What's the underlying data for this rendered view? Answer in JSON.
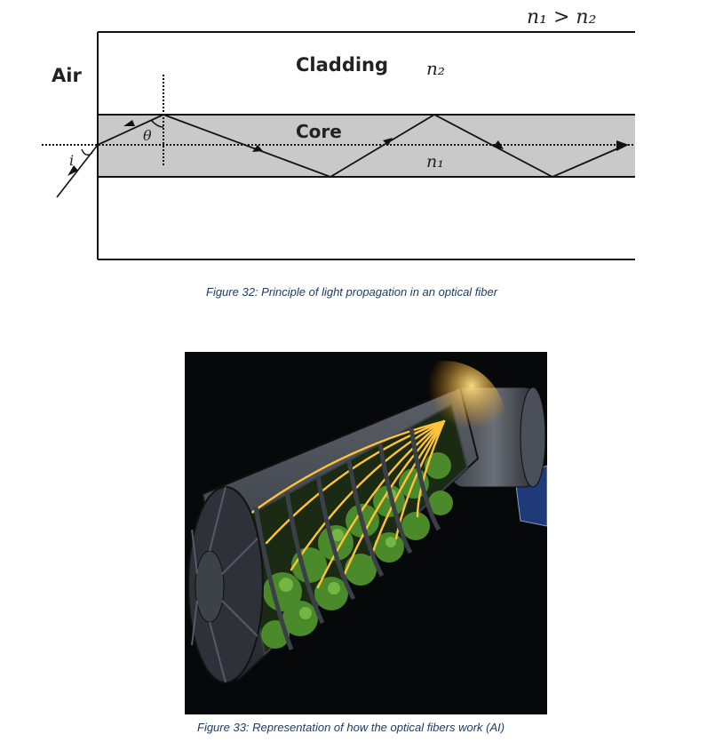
{
  "diagram": {
    "relation": "n₁ > n₂",
    "air_label": "Air",
    "cladding_label": "Cladding",
    "core_label": "Core",
    "n2_label": "n₂",
    "n1_label": "n₁",
    "theta_label": "θ",
    "i_label": "i"
  },
  "captions": {
    "figure32": "Figure 32: Principle of light propagation in an optical fiber",
    "figure33": "Figure 33: Representation of how the optical fibers work (AI)"
  },
  "colors": {
    "core_fill": "#c9c9c9",
    "line": "#111111",
    "caption": "#1f3a5f",
    "fiber_glow": "#ffc23a",
    "plant_green": "#4a8a2a"
  }
}
